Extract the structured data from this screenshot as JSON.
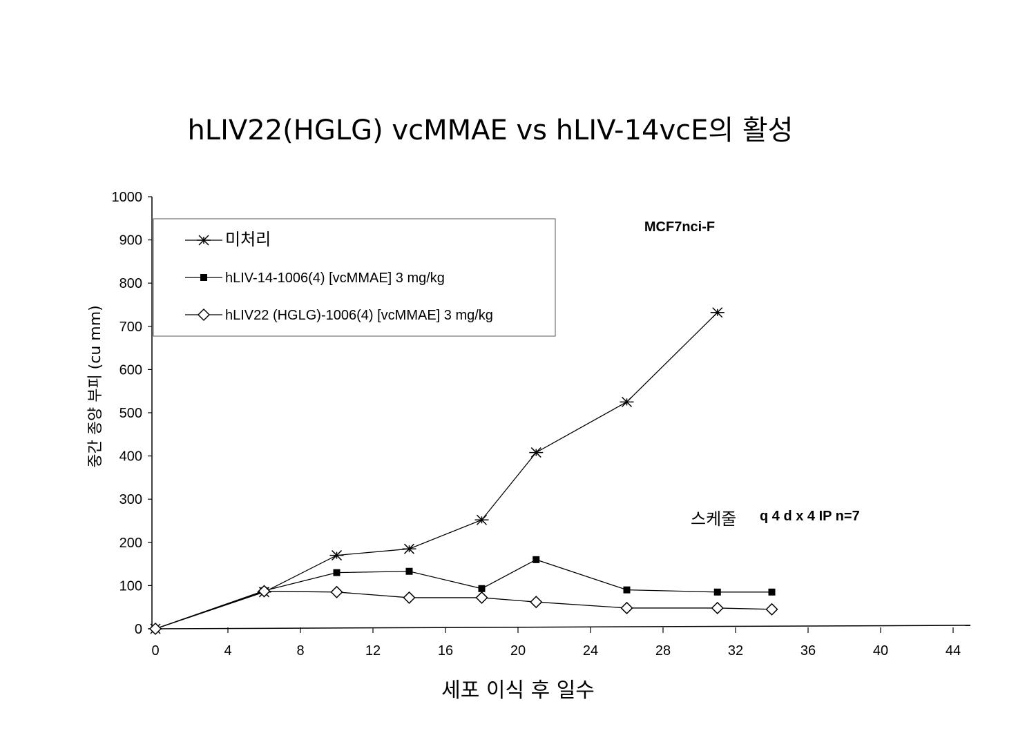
{
  "chart_data": {
    "type": "line",
    "title": "hLIV22(HGLG) vcMMAE vs hLIV-14vcE의 활성",
    "xlabel": "세포 이식 후 일수",
    "ylabel": "중간 종양 부피 (cu mm)",
    "xlim": [
      0,
      45
    ],
    "ylim": [
      0,
      1000
    ],
    "xticks": [
      0,
      4,
      8,
      12,
      16,
      20,
      24,
      28,
      32,
      36,
      40,
      44
    ],
    "yticks": [
      0,
      100,
      200,
      300,
      400,
      500,
      600,
      700,
      800,
      900,
      1000
    ],
    "grid": false,
    "legend_position": "top-left",
    "annotations": {
      "model": "MCF7nci-F",
      "schedule_label": "스케줄",
      "schedule_value": "q 4 d x 4 IP n=7"
    },
    "series": [
      {
        "name": "미처리",
        "marker": "asterisk",
        "x": [
          0,
          6,
          10,
          14,
          18,
          21,
          26,
          31
        ],
        "y": [
          0,
          85,
          170,
          185,
          252,
          408,
          525,
          732
        ]
      },
      {
        "name": "hLIV-14-1006(4) [vcMMAE] 3 mg/kg",
        "marker": "square",
        "x": [
          0,
          6,
          10,
          14,
          18,
          21,
          26,
          31,
          34
        ],
        "y": [
          0,
          88,
          130,
          133,
          93,
          160,
          90,
          85,
          85
        ]
      },
      {
        "name": "hLIV22 (HGLG)-1006(4) [vcMMAE] 3 mg/kg",
        "marker": "diamond",
        "x": [
          0,
          6,
          10,
          14,
          18,
          21,
          26,
          31,
          34
        ],
        "y": [
          0,
          87,
          85,
          72,
          72,
          62,
          48,
          48,
          45
        ]
      }
    ]
  }
}
